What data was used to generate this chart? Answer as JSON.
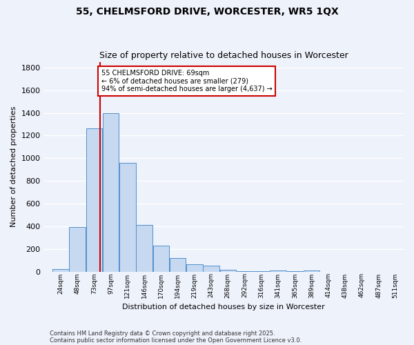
{
  "title": "55, CHELMSFORD DRIVE, WORCESTER, WR5 1QX",
  "subtitle": "Size of property relative to detached houses in Worcester",
  "xlabel": "Distribution of detached houses by size in Worcester",
  "ylabel": "Number of detached properties",
  "categories": [
    "24sqm",
    "48sqm",
    "73sqm",
    "97sqm",
    "121sqm",
    "146sqm",
    "170sqm",
    "194sqm",
    "219sqm",
    "243sqm",
    "268sqm",
    "292sqm",
    "316sqm",
    "341sqm",
    "365sqm",
    "389sqm",
    "414sqm",
    "438sqm",
    "462sqm",
    "487sqm",
    "511sqm"
  ],
  "values": [
    25,
    395,
    1265,
    1400,
    960,
    415,
    230,
    120,
    65,
    55,
    15,
    5,
    5,
    10,
    5,
    10,
    0,
    0,
    0,
    0,
    0
  ],
  "bar_color": "#c6d9f1",
  "bar_edge_color": "#4f8fcc",
  "red_line_color": "#cc0000",
  "annotation_text": "55 CHELMSFORD DRIVE: 69sqm\n← 6% of detached houses are smaller (279)\n94% of semi-detached houses are larger (4,637) →",
  "annotation_box_color": "#ffffff",
  "annotation_box_edge": "#cc0000",
  "ylim": [
    0,
    1850
  ],
  "yticks": [
    0,
    200,
    400,
    600,
    800,
    1000,
    1200,
    1400,
    1600,
    1800
  ],
  "background_color": "#eef2fb",
  "axes_background": "#eef2fb",
  "grid_color": "#ffffff",
  "footnote1": "Contains HM Land Registry data © Crown copyright and database right 2025.",
  "footnote2": "Contains public sector information licensed under the Open Government Licence v3.0.",
  "n_bins": 21,
  "bin_width": 24.3
}
